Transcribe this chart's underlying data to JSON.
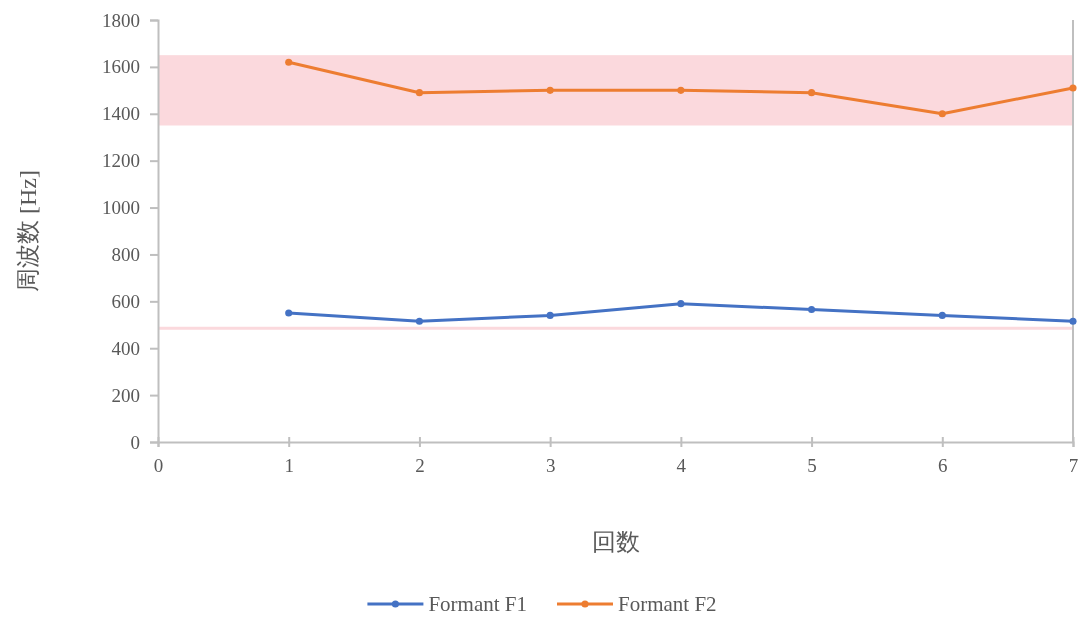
{
  "chart_data": {
    "type": "line",
    "xlabel": "回数",
    "ylabel": "周波数 [Hz]",
    "x": [
      1,
      2,
      3,
      4,
      5,
      6,
      7
    ],
    "series": [
      {
        "name": "Formant F1",
        "color": "#4472c4",
        "values": [
          550,
          515,
          540,
          590,
          565,
          540,
          515
        ]
      },
      {
        "name": "Formant F2",
        "color": "#ed7d31",
        "values": [
          1620,
          1490,
          1500,
          1500,
          1490,
          1400,
          1510
        ]
      }
    ],
    "xlim": [
      0,
      7
    ],
    "xticks": [
      0,
      1,
      2,
      3,
      4,
      5,
      6,
      7
    ],
    "ylim": [
      0,
      1800
    ],
    "yticks": [
      0,
      200,
      400,
      600,
      800,
      1000,
      1200,
      1400,
      1600,
      1800
    ],
    "bands": [
      {
        "axis": "y",
        "from": 1350,
        "to": 1650,
        "color": "#fbd9dd"
      }
    ],
    "ref_lines": [
      {
        "axis": "y",
        "value": 485,
        "color": "#fbd9dd"
      }
    ],
    "marker": "circle",
    "line_style": "solid",
    "legend": "bottom"
  }
}
